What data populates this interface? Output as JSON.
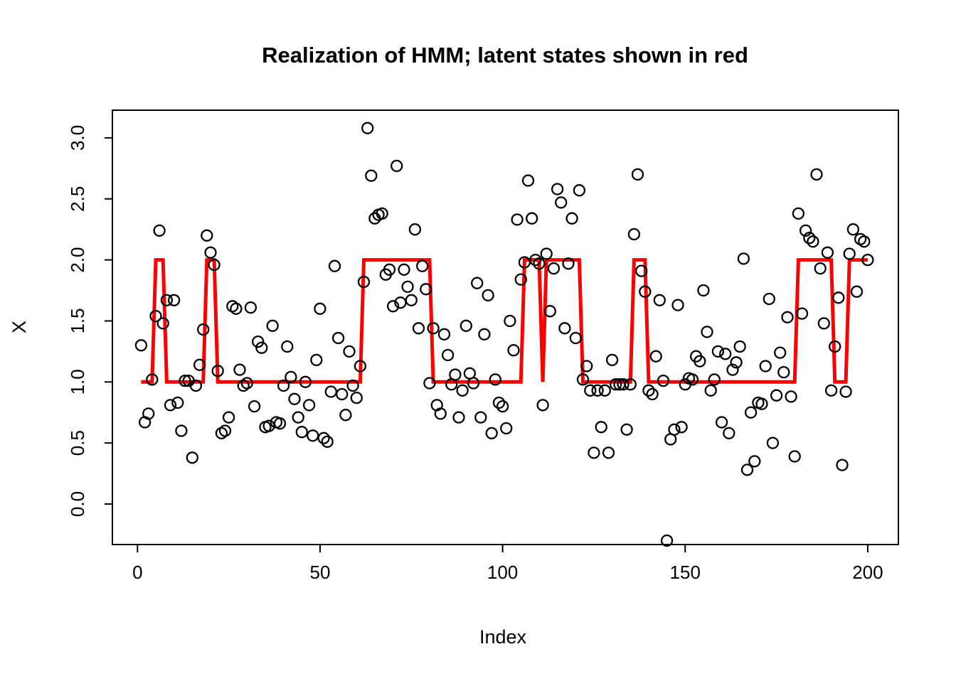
{
  "chart_data": {
    "type": "scatter",
    "title": "Realization of HMM; latent states shown in red",
    "xlabel": "Index",
    "ylabel": "X",
    "x_ticks": [
      0,
      50,
      100,
      150,
      200
    ],
    "y_ticks": [
      0.0,
      0.5,
      1.0,
      1.5,
      2.0,
      2.5,
      3.0
    ],
    "y_tick_labels": [
      "0.0",
      "0.5",
      "1.0",
      "1.5",
      "2.0",
      "2.5",
      "3.0"
    ],
    "x_tick_labels": [
      "0",
      "50",
      "100",
      "150",
      "200"
    ],
    "xlim": [
      -7,
      208
    ],
    "ylim": [
      -0.33,
      3.23
    ],
    "grid": "off",
    "legend": "none",
    "n_points": 200,
    "x_first": 1,
    "x_step": 1,
    "point_marker": "open-circle",
    "point_color": "#000000",
    "state_line_color": "#FF0000",
    "background_color": "#FFFFFF",
    "observations": [
      1.3,
      0.67,
      0.74,
      1.02,
      1.54,
      2.24,
      1.48,
      1.67,
      0.81,
      1.67,
      0.83,
      0.6,
      1.01,
      1.01,
      0.38,
      0.97,
      1.14,
      1.43,
      2.2,
      2.06,
      1.96,
      1.09,
      0.58,
      0.6,
      0.71,
      1.62,
      1.6,
      1.1,
      0.97,
      0.99,
      1.61,
      0.8,
      1.33,
      1.28,
      0.63,
      0.64,
      1.46,
      0.67,
      0.66,
      0.97,
      1.29,
      1.04,
      0.86,
      0.71,
      0.59,
      1.0,
      0.81,
      0.56,
      1.18,
      1.6,
      0.54,
      0.51,
      0.92,
      1.95,
      1.36,
      0.9,
      0.73,
      1.25,
      0.97,
      0.87,
      1.13,
      1.82,
      3.08,
      2.69,
      2.34,
      2.37,
      2.38,
      1.88,
      1.92,
      1.62,
      2.77,
      1.65,
      1.92,
      1.78,
      1.67,
      2.25,
      1.44,
      1.95,
      1.76,
      0.99,
      1.44,
      0.81,
      0.74,
      1.39,
      1.22,
      0.98,
      1.06,
      0.71,
      0.93,
      1.46,
      1.07,
      0.99,
      1.81,
      0.71,
      1.39,
      1.71,
      0.58,
      1.02,
      0.83,
      0.8,
      0.62,
      1.5,
      1.26,
      2.33,
      1.84,
      1.98,
      2.65,
      2.34,
      2.0,
      1.97,
      0.81,
      2.05,
      1.58,
      1.93,
      2.58,
      2.47,
      1.44,
      1.97,
      2.34,
      1.36,
      2.57,
      1.02,
      1.13,
      0.93,
      0.42,
      0.93,
      0.63,
      0.93,
      0.42,
      1.18,
      0.98,
      0.98,
      0.98,
      0.61,
      0.98,
      2.21,
      2.7,
      1.91,
      1.74,
      0.93,
      0.9,
      1.21,
      1.67,
      1.01,
      -0.3,
      0.53,
      0.61,
      1.63,
      0.63,
      0.98,
      1.03,
      1.02,
      1.21,
      1.17,
      1.75,
      1.41,
      0.93,
      1.02,
      1.25,
      0.67,
      1.23,
      0.58,
      1.1,
      1.16,
      1.29,
      2.01,
      0.28,
      0.75,
      0.35,
      0.83,
      0.82,
      1.13,
      1.68,
      0.5,
      0.89,
      1.24,
      1.08,
      1.53,
      0.88,
      0.39,
      2.38,
      1.56,
      2.24,
      2.18,
      2.15,
      2.7,
      1.93,
      1.48,
      2.06,
      0.93,
      1.29,
      1.69,
      0.32,
      0.92,
      2.05,
      2.25,
      1.74,
      2.17,
      2.15,
      2.0
    ],
    "latent_state_runs": [
      {
        "from": 1,
        "to": 4,
        "state": 1
      },
      {
        "from": 5,
        "to": 7,
        "state": 2
      },
      {
        "from": 8,
        "to": 18,
        "state": 1
      },
      {
        "from": 19,
        "to": 21,
        "state": 2
      },
      {
        "from": 22,
        "to": 61,
        "state": 1
      },
      {
        "from": 62,
        "to": 80,
        "state": 2
      },
      {
        "from": 81,
        "to": 105,
        "state": 1
      },
      {
        "from": 106,
        "to": 110,
        "state": 2
      },
      {
        "from": 111,
        "to": 111,
        "state": 1
      },
      {
        "from": 112,
        "to": 121,
        "state": 2
      },
      {
        "from": 122,
        "to": 135,
        "state": 1
      },
      {
        "from": 136,
        "to": 139,
        "state": 2
      },
      {
        "from": 140,
        "to": 180,
        "state": 1
      },
      {
        "from": 181,
        "to": 190,
        "state": 2
      },
      {
        "from": 191,
        "to": 194,
        "state": 1
      },
      {
        "from": 195,
        "to": 200,
        "state": 2
      }
    ]
  }
}
